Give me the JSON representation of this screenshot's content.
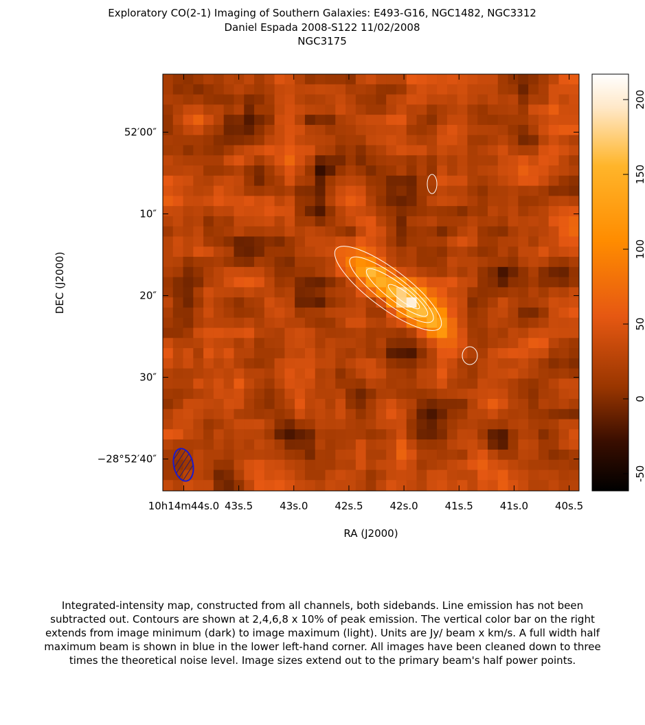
{
  "header": {
    "title": "Exploratory CO(2-1) Imaging of Southern Galaxies: E493-G16, NGC1482, NGC3312",
    "subtitle": "Daniel Espada   2008-S122   11/02/2008",
    "object": "NGC3175"
  },
  "chart_data": {
    "type": "heatmap",
    "xlabel": "RA (J2000)",
    "ylabel": "DEC (J2000)",
    "xlim": [
      44.19,
      40.41
    ],
    "xticks": [
      {
        "value": 44.0,
        "label": "10h14m44s.0"
      },
      {
        "value": 43.5,
        "label": "43s.5"
      },
      {
        "value": 43.0,
        "label": "43s.0"
      },
      {
        "value": 42.5,
        "label": "42s.5"
      },
      {
        "value": 42.0,
        "label": "42s.0"
      },
      {
        "value": 41.5,
        "label": "41s.5"
      },
      {
        "value": 41.0,
        "label": "41s.0"
      },
      {
        "value": 40.5,
        "label": "40s.5"
      }
    ],
    "ylim": [
      -7.1,
      43.9
    ],
    "yticks": [
      {
        "value": 0,
        "label": "52′00″"
      },
      {
        "value": 10,
        "label": "10″"
      },
      {
        "value": 20,
        "label": "20″"
      },
      {
        "value": 30,
        "label": "30″"
      },
      {
        "value": 40,
        "label": "−28°52′40″"
      }
    ],
    "colorbar_lim": [
      -61.5,
      217
    ],
    "colorbar_ticks": [
      -50,
      0,
      50,
      100,
      150,
      200
    ]
  },
  "caption": "Integrated-intensity map, constructed from all channels, both sidebands.  Line emission has not been subtracted out.  Contours are shown at 2,4,6,8 x 10% of peak emission.  The vertical color bar on the right extends from image minimum (dark) to image maximum (light).  Units are Jy/ beam x km/s.  A full width half maximum beam is shown in blue in the lower left-hand corner.  All images have been cleaned down to three times the theoretical noise level.  Image sizes extend out to the primary beam's half power points."
}
